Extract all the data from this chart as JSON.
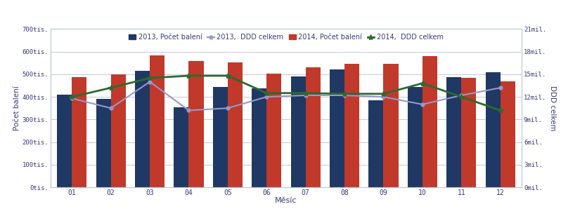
{
  "months": [
    "01",
    "02",
    "03",
    "04",
    "05",
    "06",
    "07",
    "08",
    "09",
    "10",
    "11",
    "12"
  ],
  "bar2013": [
    410000,
    390000,
    515000,
    355000,
    443000,
    438000,
    490000,
    520000,
    385000,
    443000,
    488000,
    508000
  ],
  "bar2014": [
    488000,
    498000,
    582000,
    558000,
    552000,
    503000,
    530000,
    545000,
    547000,
    580000,
    483000,
    468000
  ],
  "ddd2013": [
    11800000,
    10500000,
    14000000,
    10200000,
    10500000,
    12000000,
    12200000,
    12200000,
    12000000,
    11000000,
    12200000,
    13200000
  ],
  "ddd2014": [
    12000000,
    13200000,
    14500000,
    14800000,
    14800000,
    12500000,
    12500000,
    12400000,
    12400000,
    13800000,
    12000000,
    10200000
  ],
  "bar2013_color": "#1f3864",
  "bar2014_color": "#c0392b",
  "ddd2013_color": "#9898c8",
  "ddd2014_color": "#2d6a2d",
  "ylabel_left": "Počet balení",
  "ylabel_right": "DDD celkem",
  "xlabel": "Měsíc",
  "ylim_left": [
    0,
    700000
  ],
  "ylim_right": [
    0,
    21000000
  ],
  "yticks_left": [
    0,
    100000,
    200000,
    300000,
    400000,
    500000,
    600000,
    700000
  ],
  "ytick_labels_left": [
    "0tis.",
    "100tis.",
    "200tis.",
    "300tis.",
    "400tis.",
    "500tis.",
    "600tis.",
    "700tis."
  ],
  "yticks_right": [
    0,
    3000000,
    6000000,
    9000000,
    12000000,
    15000000,
    18000000,
    21000000
  ],
  "ytick_labels_right": [
    "0mil.",
    "3mil.",
    "6mil.",
    "9mil.",
    "12mil.",
    "15mil.",
    "18mil.",
    "21mil."
  ],
  "legend_labels": [
    "2013, Počet balení",
    "2013,  DDD celkem",
    "2014, Počet balení",
    "2014,  DDD celkem"
  ],
  "background_color": "#ffffff",
  "grid_color": "#c0c8d8",
  "text_color": "#3a3a7a",
  "bar_width": 0.38,
  "figwidth": 7.98,
  "figheight": 3.18,
  "dpi": 100
}
